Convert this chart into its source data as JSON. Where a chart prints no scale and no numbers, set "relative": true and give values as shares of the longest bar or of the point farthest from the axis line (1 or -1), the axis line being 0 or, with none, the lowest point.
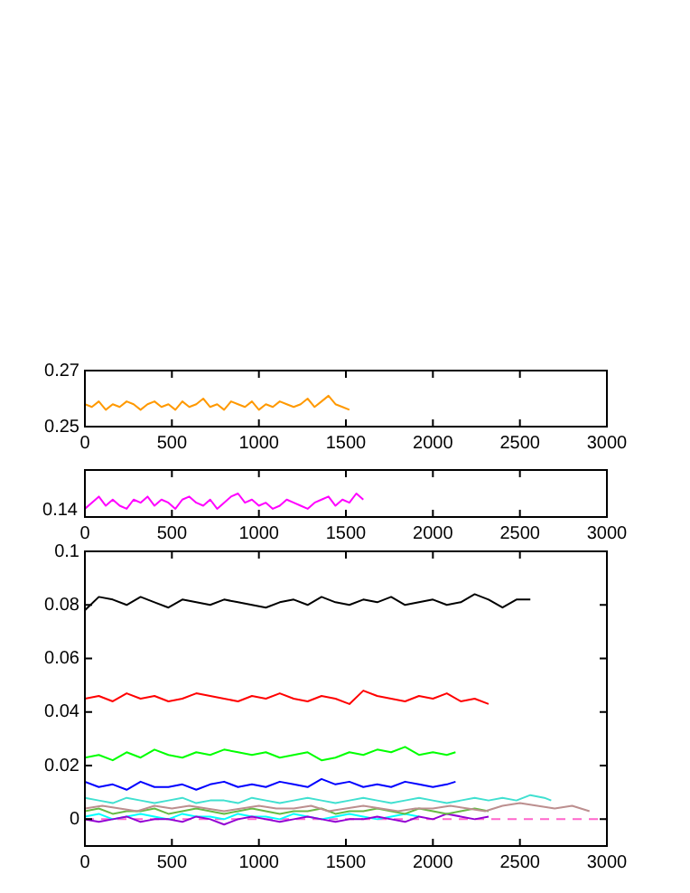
{
  "chart_data": [
    {
      "type": "line",
      "xlim": [
        0,
        3000
      ],
      "xticks": [
        0,
        500,
        1000,
        1500,
        2000,
        2500,
        3000
      ],
      "ylim": [
        0.25,
        0.27
      ],
      "yticks": [
        0.25,
        0.27
      ],
      "marker": "none",
      "series": [
        {
          "color": "#ff9900",
          "x": [
            0,
            40,
            80,
            120,
            160,
            200,
            240,
            280,
            320,
            360,
            400,
            440,
            480,
            520,
            560,
            600,
            640,
            680,
            720,
            760,
            800,
            840,
            880,
            920,
            960,
            1000,
            1040,
            1080,
            1120,
            1160,
            1200,
            1240,
            1280,
            1320,
            1360,
            1400,
            1440,
            1480,
            1520
          ],
          "values": [
            0.258,
            0.257,
            0.259,
            0.256,
            0.258,
            0.257,
            0.259,
            0.258,
            0.256,
            0.258,
            0.259,
            0.257,
            0.258,
            0.256,
            0.259,
            0.257,
            0.258,
            0.26,
            0.257,
            0.258,
            0.256,
            0.259,
            0.258,
            0.257,
            0.259,
            0.256,
            0.258,
            0.257,
            0.259,
            0.258,
            0.257,
            0.258,
            0.26,
            0.257,
            0.259,
            0.261,
            0.258,
            0.257,
            0.256
          ]
        }
      ]
    },
    {
      "type": "line",
      "xlim": [
        0,
        3000
      ],
      "xticks": [
        0,
        500,
        1000,
        1500,
        2000,
        2500,
        3000
      ],
      "relative": true,
      "annotations": [
        "0.14"
      ],
      "marker": "none",
      "series": [
        {
          "color": "#ff00ff",
          "x": [
            0,
            40,
            80,
            120,
            160,
            200,
            240,
            280,
            320,
            360,
            400,
            440,
            480,
            520,
            560,
            600,
            640,
            680,
            720,
            760,
            800,
            840,
            880,
            920,
            960,
            1000,
            1040,
            1080,
            1120,
            1160,
            1200,
            1240,
            1280,
            1320,
            1360,
            1400,
            1440,
            1480,
            1520,
            1560,
            1600
          ],
          "values": [
            0.35,
            0.61,
            0.87,
            0.48,
            0.74,
            0.48,
            0.35,
            0.74,
            0.61,
            0.87,
            0.48,
            0.74,
            0.61,
            0.35,
            0.74,
            0.87,
            0.61,
            0.48,
            0.74,
            0.35,
            0.61,
            0.87,
            1,
            0.61,
            0.74,
            0.48,
            0.61,
            0.35,
            0.48,
            0.74,
            0.61,
            0.48,
            0.35,
            0.61,
            0.74,
            0.87,
            0.48,
            0.74,
            0.61,
            1,
            0.74
          ]
        }
      ]
    },
    {
      "type": "line",
      "xlim": [
        0,
        3000
      ],
      "xticks": [
        0,
        500,
        1000,
        1500,
        2000,
        2500,
        3000
      ],
      "ylim": [
        -0.01,
        0.1
      ],
      "yticks": [
        0,
        0.02,
        0.04,
        0.06,
        0.08,
        0.1
      ],
      "marker": "none",
      "ref_lines": [
        {
          "axis": "y",
          "value": 0,
          "color": "#ff66cc",
          "line_style": "dashed"
        }
      ],
      "series": [
        {
          "color": "#000000",
          "x": [
            0,
            80,
            160,
            240,
            320,
            400,
            480,
            560,
            640,
            720,
            800,
            880,
            960,
            1040,
            1120,
            1200,
            1280,
            1360,
            1440,
            1520,
            1600,
            1680,
            1760,
            1840,
            1920,
            2000,
            2080,
            2160,
            2240,
            2320,
            2400,
            2480,
            2560
          ],
          "values": [
            0.078,
            0.083,
            0.082,
            0.08,
            0.083,
            0.081,
            0.079,
            0.082,
            0.081,
            0.08,
            0.082,
            0.081,
            0.08,
            0.079,
            0.081,
            0.082,
            0.08,
            0.083,
            0.081,
            0.08,
            0.082,
            0.081,
            0.083,
            0.08,
            0.081,
            0.082,
            0.08,
            0.081,
            0.084,
            0.082,
            0.079,
            0.082,
            0.082
          ]
        },
        {
          "color": "#ff0000",
          "x": [
            0,
            80,
            160,
            240,
            320,
            400,
            480,
            560,
            640,
            720,
            800,
            880,
            960,
            1040,
            1120,
            1200,
            1280,
            1360,
            1440,
            1520,
            1600,
            1680,
            1760,
            1840,
            1920,
            2000,
            2080,
            2160,
            2240,
            2320
          ],
          "values": [
            0.045,
            0.046,
            0.044,
            0.047,
            0.045,
            0.046,
            0.044,
            0.045,
            0.047,
            0.046,
            0.045,
            0.044,
            0.046,
            0.045,
            0.047,
            0.045,
            0.044,
            0.046,
            0.045,
            0.043,
            0.048,
            0.046,
            0.045,
            0.044,
            0.046,
            0.045,
            0.047,
            0.044,
            0.045,
            0.043
          ]
        },
        {
          "color": "#00ff00",
          "x": [
            0,
            80,
            160,
            240,
            320,
            400,
            480,
            560,
            640,
            720,
            800,
            880,
            960,
            1040,
            1120,
            1200,
            1280,
            1360,
            1440,
            1520,
            1600,
            1680,
            1760,
            1840,
            1920,
            2000,
            2080,
            2130
          ],
          "values": [
            0.023,
            0.024,
            0.022,
            0.025,
            0.023,
            0.026,
            0.024,
            0.023,
            0.025,
            0.024,
            0.026,
            0.025,
            0.024,
            0.025,
            0.023,
            0.024,
            0.025,
            0.022,
            0.023,
            0.025,
            0.024,
            0.026,
            0.025,
            0.027,
            0.024,
            0.025,
            0.024,
            0.025
          ]
        },
        {
          "color": "#0000ff",
          "x": [
            0,
            80,
            160,
            240,
            320,
            400,
            480,
            560,
            640,
            720,
            800,
            880,
            960,
            1040,
            1120,
            1200,
            1280,
            1360,
            1440,
            1520,
            1600,
            1680,
            1760,
            1840,
            1920,
            2000,
            2080,
            2130
          ],
          "values": [
            0.014,
            0.012,
            0.013,
            0.011,
            0.014,
            0.012,
            0.012,
            0.013,
            0.011,
            0.013,
            0.014,
            0.012,
            0.013,
            0.012,
            0.014,
            0.013,
            0.012,
            0.015,
            0.013,
            0.014,
            0.012,
            0.013,
            0.012,
            0.014,
            0.013,
            0.012,
            0.013,
            0.014
          ]
        },
        {
          "color": "#40e0d0",
          "x": [
            0,
            80,
            160,
            240,
            320,
            400,
            480,
            560,
            640,
            720,
            800,
            880,
            960,
            1040,
            1120,
            1200,
            1280,
            1360,
            1440,
            1520,
            1600,
            1680,
            1760,
            1840,
            1920,
            2000,
            2080,
            2160,
            2240,
            2320,
            2400,
            2480,
            2560,
            2640,
            2680
          ],
          "values": [
            0.008,
            0.007,
            0.006,
            0.008,
            0.007,
            0.006,
            0.007,
            0.008,
            0.006,
            0.007,
            0.007,
            0.006,
            0.008,
            0.007,
            0.006,
            0.007,
            0.008,
            0.007,
            0.006,
            0.007,
            0.008,
            0.007,
            0.006,
            0.007,
            0.008,
            0.007,
            0.006,
            0.007,
            0.008,
            0.007,
            0.008,
            0.007,
            0.009,
            0.008,
            0.007
          ]
        },
        {
          "color": "#bc8f8f",
          "x": [
            0,
            100,
            200,
            300,
            400,
            500,
            600,
            700,
            800,
            900,
            1000,
            1100,
            1200,
            1300,
            1400,
            1500,
            1600,
            1700,
            1800,
            1900,
            2000,
            2100,
            2200,
            2300,
            2400,
            2500,
            2600,
            2700,
            2800,
            2900
          ],
          "values": [
            0.004,
            0.005,
            0.004,
            0.003,
            0.005,
            0.004,
            0.005,
            0.004,
            0.003,
            0.004,
            0.005,
            0.004,
            0.004,
            0.005,
            0.003,
            0.004,
            0.005,
            0.004,
            0.003,
            0.004,
            0.004,
            0.005,
            0.004,
            0.003,
            0.005,
            0.006,
            0.005,
            0.004,
            0.005,
            0.003
          ]
        },
        {
          "color": "#66bb44",
          "x": [
            0,
            80,
            160,
            240,
            320,
            400,
            480,
            560,
            640,
            720,
            800,
            880,
            960,
            1040,
            1120,
            1200,
            1280,
            1360,
            1440,
            1520,
            1600,
            1680,
            1760,
            1840,
            1920,
            2000,
            2080,
            2160,
            2240,
            2320
          ],
          "values": [
            0.003,
            0.004,
            0.002,
            0.003,
            0.003,
            0.004,
            0.002,
            0.003,
            0.004,
            0.003,
            0.002,
            0.003,
            0.004,
            0.003,
            0.002,
            0.003,
            0.003,
            0.004,
            0.002,
            0.003,
            0.003,
            0.004,
            0.003,
            0.002,
            0.004,
            0.003,
            0.002,
            0.003,
            0.004,
            0.003
          ]
        },
        {
          "color": "#9400d3",
          "x": [
            0,
            80,
            160,
            240,
            320,
            400,
            480,
            560,
            640,
            720,
            800,
            880,
            960,
            1040,
            1120,
            1200,
            1280,
            1360,
            1440,
            1520,
            1600,
            1680,
            1760,
            1840,
            1920,
            2000,
            2080,
            2160,
            2240,
            2320
          ],
          "values": [
            0,
            -0.001,
            0,
            0.001,
            -0.001,
            0,
            0,
            -0.001,
            0.001,
            0,
            -0.002,
            0,
            0.001,
            0,
            -0.001,
            0,
            0.001,
            0,
            -0.001,
            0,
            0,
            0.001,
            0,
            -0.001,
            0.001,
            0,
            0.002,
            0.001,
            0,
            0.001
          ]
        },
        {
          "color": "#00ffff",
          "x": [
            0,
            80,
            160,
            240,
            320,
            400,
            480,
            560,
            640,
            720,
            800,
            880,
            960,
            1040,
            1120,
            1200,
            1280,
            1360,
            1440,
            1520,
            1600,
            1680,
            1760,
            1840,
            1920
          ],
          "values": [
            0.001,
            0.002,
            0,
            0.001,
            0.002,
            0.001,
            0,
            0.002,
            0.001,
            0.001,
            0,
            0.002,
            0.001,
            0.001,
            0,
            0.002,
            0.001,
            0,
            0.001,
            0.002,
            0.001,
            0,
            0.001,
            0.002,
            0.001
          ]
        }
      ]
    }
  ]
}
